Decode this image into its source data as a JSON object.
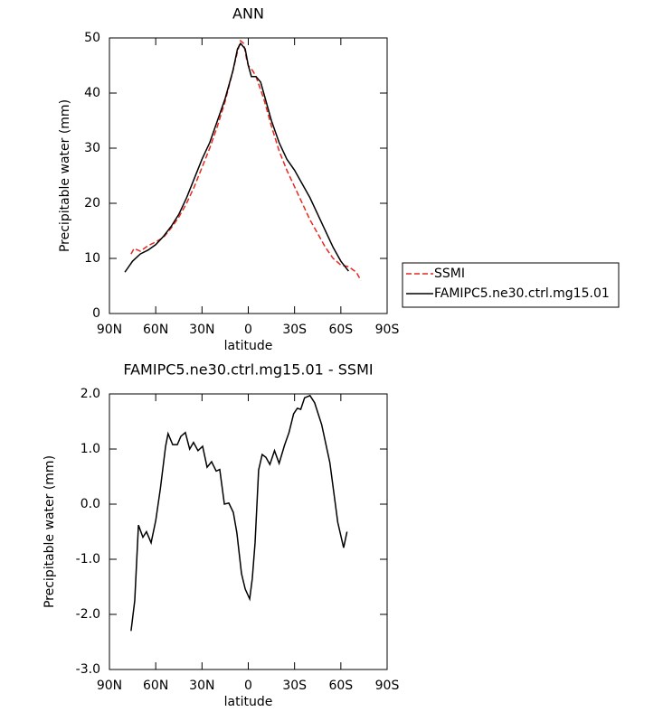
{
  "chart_data": [
    {
      "type": "line",
      "title": "ANN",
      "xlabel": "latitude",
      "ylabel": "Precipitable water (mm)",
      "xlim": [
        90,
        -90
      ],
      "xticks": [
        {
          "value": 90,
          "label": "90N"
        },
        {
          "value": 60,
          "label": "60N"
        },
        {
          "value": 30,
          "label": "30N"
        },
        0,
        {
          "value": -30,
          "label": "30S"
        },
        {
          "value": -60,
          "label": "60S"
        },
        {
          "value": -90,
          "label": "90S"
        }
      ],
      "ylim": [
        0,
        50
      ],
      "yticks": [
        0,
        10,
        20,
        30,
        40,
        50
      ],
      "legend": "right",
      "series": [
        {
          "name": "SSMI",
          "color": "#e8281e",
          "line_style": "dashed",
          "x": [
            76,
            74,
            70,
            65,
            60,
            55,
            50,
            45,
            40,
            35,
            30,
            25,
            20,
            15,
            10,
            7,
            5,
            3,
            1,
            0,
            -3,
            -5,
            -10,
            -15,
            -20,
            -25,
            -30,
            -35,
            -40,
            -45,
            -50,
            -55,
            -60,
            -65,
            -70,
            -73
          ],
          "values": [
            10.8,
            11.8,
            11.3,
            12.3,
            13,
            13.8,
            15.5,
            17.5,
            20,
            23,
            26.5,
            30,
            34,
            38.5,
            44,
            47.5,
            49.5,
            49,
            46,
            45,
            44,
            43,
            39,
            34,
            29.5,
            26,
            23,
            20,
            17,
            14.5,
            12,
            10,
            8.8,
            8.5,
            7.5,
            6
          ]
        },
        {
          "name": "FAMIPC5.ne30.ctrl.mg15.01",
          "color": "#000000",
          "line_style": "solid",
          "x": [
            80,
            75,
            70,
            65,
            60,
            55,
            50,
            45,
            40,
            35,
            30,
            25,
            20,
            15,
            10,
            7,
            5,
            2,
            0,
            -2,
            -5,
            -8,
            -10,
            -15,
            -20,
            -25,
            -30,
            -35,
            -40,
            -45,
            -50,
            -55,
            -60,
            -65
          ],
          "values": [
            7.5,
            9.5,
            10.8,
            11.5,
            12.5,
            14,
            15.8,
            18,
            21,
            24.5,
            28,
            31,
            35,
            39,
            44,
            48,
            49,
            48,
            45,
            43,
            43,
            42,
            40,
            35,
            31,
            28,
            26,
            23.5,
            21,
            18,
            15,
            12,
            9.5,
            7.7
          ]
        }
      ]
    },
    {
      "type": "line",
      "title": "FAMIPC5.ne30.ctrl.mg15.01 - SSMI",
      "xlabel": "latitude",
      "ylabel": "Precipitable water (mm)",
      "xlim": [
        90,
        -90
      ],
      "xticks": [
        {
          "value": 90,
          "label": "90N"
        },
        {
          "value": 60,
          "label": "60N"
        },
        {
          "value": 30,
          "label": "30N"
        },
        0,
        {
          "value": -30,
          "label": "30S"
        },
        {
          "value": -60,
          "label": "60S"
        },
        {
          "value": -90,
          "label": "90S"
        }
      ],
      "ylim": [
        -3,
        2
      ],
      "yticks": [
        {
          "value": 2,
          "label": "2.0"
        },
        {
          "value": 1,
          "label": "1.0"
        },
        {
          "value": 0,
          "label": "0.0"
        },
        {
          "value": -1,
          "label": "-1.0"
        },
        {
          "value": -2,
          "label": "-2.0"
        },
        {
          "value": -3,
          "label": "-3.0"
        }
      ],
      "series": [
        {
          "color": "#000000",
          "line_style": "solid",
          "x": [
            76,
            73.6,
            71.2,
            68.3,
            66,
            63,
            60,
            57,
            53.6,
            52,
            49,
            46,
            43.7,
            40.8,
            38,
            35.5,
            32.6,
            29.6,
            26.7,
            23.8,
            20.8,
            18.5,
            15.5,
            12.6,
            9.7,
            7.4,
            4.4,
            2,
            -0.9,
            -2.6,
            -4.4,
            -6.7,
            -9,
            -11.4,
            -14,
            -17,
            -20,
            -23.5,
            -26.4,
            -29.4,
            -31.8,
            -34,
            -36.5,
            -40,
            -43,
            -47.6,
            -52.9,
            -58,
            -61.8,
            -64
          ],
          "values": [
            -2.3,
            -1.75,
            -0.38,
            -0.6,
            -0.5,
            -0.7,
            -0.3,
            0.28,
            1.05,
            1.28,
            1.08,
            1.08,
            1.23,
            1.3,
            1.0,
            1.12,
            0.97,
            1.05,
            0.67,
            0.77,
            0.6,
            0.63,
            0.0,
            0.02,
            -0.15,
            -0.52,
            -1.26,
            -1.54,
            -1.72,
            -1.35,
            -0.7,
            0.62,
            0.9,
            0.85,
            0.72,
            0.97,
            0.74,
            1.07,
            1.3,
            1.64,
            1.74,
            1.72,
            1.93,
            1.97,
            1.84,
            1.44,
            0.75,
            -0.33,
            -0.79,
            -0.5
          ]
        }
      ]
    }
  ]
}
